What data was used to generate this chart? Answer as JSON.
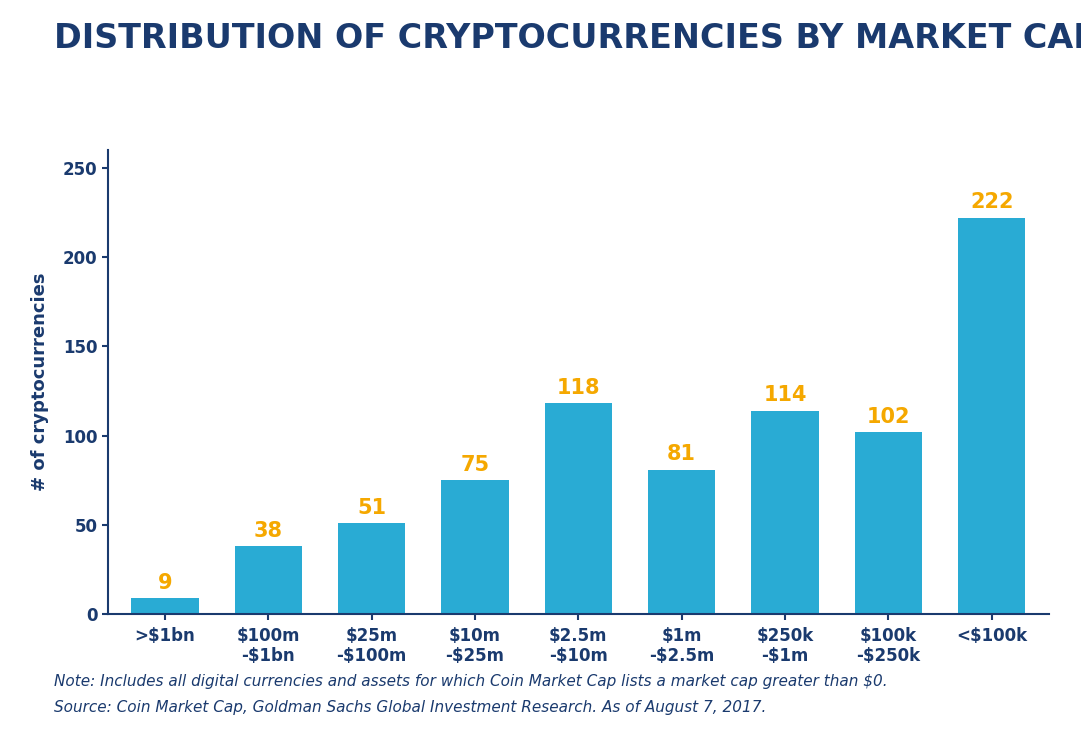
{
  "title": "DISTRIBUTION OF CRYPTOCURRENCIES BY MARKET CAP",
  "categories": [
    ">$1bn",
    "$100m\n-$1bn",
    "$25m\n-$100m",
    "$10m\n-$25m",
    "$2.5m\n-$10m",
    "$1m\n-$2.5m",
    "$250k\n-$1m",
    "$100k\n-$250k",
    "<$100k"
  ],
  "values": [
    9,
    38,
    51,
    75,
    118,
    81,
    114,
    102,
    222
  ],
  "bar_color": "#29ABD4",
  "label_color": "#F5A800",
  "ylabel": "# of cryptocurrencies",
  "ylim": [
    0,
    260
  ],
  "yticks": [
    0,
    50,
    100,
    150,
    200,
    250
  ],
  "note_line1": "Note: Includes all digital currencies and assets for which Coin Market Cap lists a market cap greater than $0.",
  "note_line2": "Source: Coin Market Cap, Goldman Sachs Global Investment Research. As of August 7, 2017.",
  "background_color": "#FFFFFF",
  "title_color": "#1A3A6E",
  "axis_color": "#1A3A6E",
  "spine_color": "#1A3A6E",
  "title_fontsize": 24,
  "label_fontsize": 13,
  "value_fontsize": 15,
  "tick_fontsize": 12,
  "note_fontsize": 11,
  "bar_width": 0.65
}
